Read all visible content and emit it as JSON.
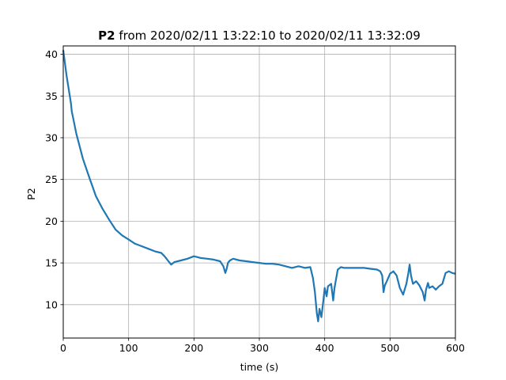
{
  "chart_data": {
    "type": "line",
    "title_bold": "P2",
    "title_rest": " from 2020/02/11 13:22:10 to 2020/02/11 13:32:09",
    "xlabel": "time (s)",
    "ylabel": "P2",
    "xlim": [
      0,
      600
    ],
    "ylim": [
      6,
      41
    ],
    "xticks": [
      0,
      100,
      200,
      300,
      400,
      500,
      600
    ],
    "yticks": [
      10,
      15,
      20,
      25,
      30,
      35,
      40
    ],
    "grid": true,
    "legend": "none",
    "line_color": "#1f77b4",
    "series": [
      {
        "x": [
          0,
          5,
          10,
          12,
          13,
          20,
          30,
          40,
          50,
          60,
          70,
          80,
          90,
          100,
          110,
          120,
          130,
          140,
          150,
          155,
          160,
          165,
          170,
          180,
          190,
          200,
          210,
          220,
          230,
          240,
          245,
          248,
          250,
          252,
          255,
          260,
          270,
          280,
          290,
          300,
          310,
          320,
          330,
          340,
          350,
          360,
          370,
          378,
          382,
          385,
          388,
          390,
          392,
          395,
          398,
          400,
          403,
          405,
          410,
          413,
          415,
          420,
          425,
          430,
          440,
          450,
          460,
          470,
          480,
          485,
          488,
          490,
          492,
          495,
          500,
          505,
          510,
          515,
          520,
          525,
          528,
          530,
          532,
          535,
          540,
          545,
          550,
          553,
          555,
          558,
          560,
          565,
          570,
          575,
          580,
          585,
          590,
          595,
          600
        ],
        "values": [
          40.5,
          37.5,
          35.0,
          34.0,
          33.2,
          30.5,
          27.5,
          25.2,
          23.0,
          21.5,
          20.2,
          19.0,
          18.3,
          17.8,
          17.3,
          17.0,
          16.7,
          16.4,
          16.2,
          15.8,
          15.3,
          14.8,
          15.1,
          15.3,
          15.5,
          15.8,
          15.6,
          15.5,
          15.4,
          15.2,
          14.6,
          13.8,
          14.3,
          15.0,
          15.3,
          15.5,
          15.3,
          15.2,
          15.1,
          15.0,
          14.9,
          14.9,
          14.8,
          14.6,
          14.4,
          14.6,
          14.4,
          14.5,
          13.2,
          11.5,
          9.0,
          8.0,
          9.5,
          8.5,
          10.5,
          12.0,
          11.0,
          12.2,
          12.5,
          10.5,
          12.0,
          14.2,
          14.5,
          14.4,
          14.4,
          14.4,
          14.4,
          14.3,
          14.2,
          14.0,
          13.5,
          11.5,
          12.3,
          12.8,
          13.7,
          14.0,
          13.5,
          12.0,
          11.2,
          12.5,
          13.8,
          14.8,
          13.5,
          12.5,
          12.8,
          12.3,
          11.5,
          10.5,
          11.8,
          12.6,
          12.0,
          12.2,
          11.8,
          12.2,
          12.5,
          13.8,
          14.0,
          13.8,
          13.7
        ]
      }
    ]
  }
}
